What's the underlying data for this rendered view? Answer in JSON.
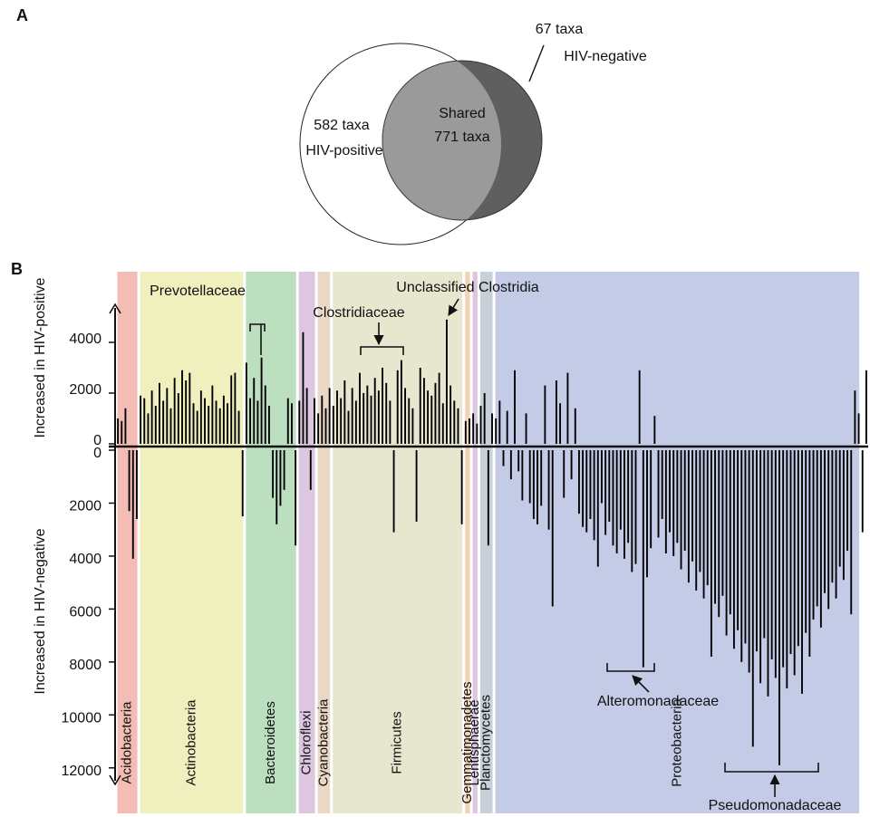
{
  "panels": [
    "A",
    "B"
  ],
  "venn": {
    "sets": [
      {
        "name": "HIV-positive",
        "label": "582 taxa"
      },
      {
        "name": "HIV-negative",
        "label": "67 taxa"
      }
    ],
    "shared": {
      "name": "Shared",
      "label": "771 taxa"
    }
  },
  "chart_data": {
    "type": "bar",
    "color": "#000000",
    "ylim": [
      0,
      5000
    ],
    "yticks": [
      0,
      2000,
      4000
    ],
    "y2lim": [
      0,
      13000
    ],
    "y2ticks": [
      0,
      2000,
      4000,
      6000,
      8000,
      10000,
      12000
    ],
    "y2_inverted": true,
    "series": [
      {
        "name": "Increased in HIV-positive",
        "color": "#000000",
        "values": [
          1000,
          900,
          1400,
          null,
          null,
          null,
          1900,
          1800,
          1200,
          2100,
          1500,
          2400,
          1700,
          2200,
          1400,
          2600,
          2000,
          2900,
          2500,
          2800,
          1600,
          1300,
          2100,
          1800,
          1500,
          2300,
          1700,
          1400,
          1900,
          1600,
          2700,
          2800,
          1300,
          null,
          3200,
          1800,
          2600,
          1700,
          3400,
          2300,
          1500,
          null,
          null,
          null,
          null,
          1800,
          1600,
          null,
          1700,
          4400,
          2200,
          null,
          1800,
          1200,
          1900,
          1400,
          2200,
          1500,
          2100,
          1800,
          2500,
          1300,
          2200,
          1700,
          2800,
          2000,
          2300,
          1900,
          2600,
          2100,
          3000,
          2400,
          1700,
          null,
          2900,
          3300,
          2200,
          1800,
          1400,
          null,
          3000,
          2600,
          2100,
          1900,
          2400,
          2800,
          1600,
          4900,
          2300,
          1700,
          1400,
          null,
          900,
          1000,
          1200,
          800,
          1500,
          2000,
          null,
          1200,
          1000,
          1700,
          null,
          1300,
          null,
          2900,
          null,
          null,
          1200,
          null,
          null,
          null,
          null,
          2300,
          null,
          null,
          2500,
          1600,
          null,
          2800,
          null,
          1400,
          null,
          null,
          null,
          null,
          null,
          null,
          null,
          null,
          null,
          null,
          null,
          null,
          null,
          null,
          null,
          null,
          2900,
          null,
          null,
          null,
          1100,
          null,
          null,
          null,
          null,
          null,
          null,
          null,
          null,
          null,
          null,
          null,
          null,
          null,
          null,
          null,
          null,
          null,
          null,
          null,
          null,
          null,
          null,
          null,
          null,
          null,
          null,
          null,
          null,
          null,
          null,
          null,
          null,
          null,
          null,
          null,
          null,
          null,
          null,
          null,
          null,
          null,
          null,
          null,
          null,
          null,
          null,
          null,
          null,
          null,
          null,
          null,
          null,
          2100,
          1200,
          null,
          2900
        ]
      },
      {
        "name": "Increased in HIV-negative",
        "color": "#000000",
        "axis": "y2",
        "values": [
          null,
          null,
          null,
          2300,
          4100,
          2600,
          null,
          null,
          null,
          null,
          null,
          null,
          null,
          null,
          null,
          null,
          null,
          null,
          null,
          null,
          null,
          null,
          null,
          null,
          null,
          null,
          null,
          null,
          null,
          null,
          null,
          null,
          null,
          2500,
          null,
          null,
          null,
          null,
          null,
          null,
          null,
          1800,
          2800,
          2100,
          1500,
          null,
          null,
          3600,
          null,
          null,
          null,
          1500,
          null,
          null,
          null,
          null,
          null,
          null,
          null,
          null,
          null,
          null,
          null,
          null,
          null,
          null,
          null,
          null,
          null,
          null,
          null,
          null,
          null,
          3100,
          null,
          null,
          null,
          null,
          null,
          2700,
          null,
          null,
          null,
          null,
          null,
          null,
          null,
          null,
          null,
          null,
          null,
          2800,
          null,
          null,
          null,
          null,
          null,
          null,
          3600,
          null,
          null,
          null,
          600,
          null,
          1100,
          null,
          800,
          1900,
          null,
          2000,
          2600,
          2800,
          2100,
          null,
          3000,
          5900,
          null,
          null,
          1800,
          null,
          1100,
          null,
          2400,
          2900,
          3100,
          2600,
          3400,
          4400,
          2000,
          3200,
          2700,
          3600,
          3900,
          3000,
          4100,
          3500,
          4600,
          4300,
          null,
          8200,
          4800,
          3700,
          null,
          3300,
          2600,
          3900,
          3100,
          4000,
          3500,
          4500,
          3800,
          5000,
          4200,
          5300,
          4600,
          5600,
          5100,
          7800,
          5800,
          6300,
          5500,
          7000,
          6200,
          7500,
          6800,
          8000,
          7300,
          8400,
          11200,
          7600,
          8800,
          7100,
          9300,
          7900,
          8600,
          11900,
          8200,
          9000,
          7700,
          8500,
          7400,
          9200,
          6900,
          7800,
          6400,
          5900,
          6700,
          5400,
          6000,
          5000,
          5600,
          4400,
          4900,
          3800,
          6200,
          null,
          null,
          3100,
          null
        ]
      }
    ],
    "groups": [
      {
        "name": "Acidobacteria",
        "count": 6,
        "color": "#f3bcb4"
      },
      {
        "name": "Actinobacteria",
        "count": 28,
        "color": "#eff0bd"
      },
      {
        "name": "Bacteroidetes",
        "count": 14,
        "color": "#bcdfbf"
      },
      {
        "name": "Chloroflexi",
        "count": 5,
        "color": "#dcc6e0"
      },
      {
        "name": "Cyanobacteria",
        "count": 4,
        "color": "#ead7c4"
      },
      {
        "name": "Firmicutes",
        "count": 35,
        "color": "#e7e7cf"
      },
      {
        "name": "Gemmatimonadetes",
        "count": 2,
        "color": "#f4d3b4"
      },
      {
        "name": "Lentisphaerae",
        "count": 2,
        "color": "#dcc6e0"
      },
      {
        "name": "Planctomycetes",
        "count": 4,
        "color": "#c8d1da"
      },
      {
        "name": "Proteobacteria",
        "count": 97,
        "color": "#c4cbe7"
      }
    ],
    "annotations": [
      "Prevotellaceae",
      "Clostridiaceae",
      "Unclassified Clostridia",
      "Alteromonadaceae",
      "Pseudomonadaceae"
    ]
  }
}
